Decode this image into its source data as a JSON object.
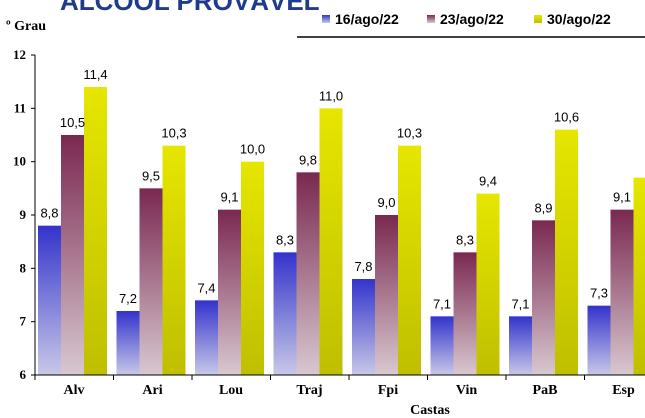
{
  "chart_data": {
    "type": "bar",
    "title": "ÁLCOOL PROVÁVEL",
    "ylabel": "º Grau",
    "xlabel": "Castas",
    "ylim": [
      6,
      12
    ],
    "yticks": [
      6,
      7,
      8,
      9,
      10,
      11,
      12
    ],
    "grid": false,
    "legend_position": "top-right",
    "categories": [
      "Alv",
      "Ari",
      "Lou",
      "Traj",
      "Fpi",
      "Vin",
      "PaB",
      "Esp"
    ],
    "series": [
      {
        "name": "16/ago/22",
        "values": [
          8.8,
          7.2,
          7.4,
          8.3,
          7.8,
          7.1,
          7.1,
          7.3
        ],
        "labels": [
          "8,8",
          "7,2",
          "7,4",
          "8,3",
          "7,8",
          "7,1",
          "7,1",
          "7,3"
        ],
        "color_top": "#3333cc",
        "color_bottom": "#c8c8e8"
      },
      {
        "name": "23/ago/22",
        "values": [
          10.5,
          9.5,
          9.1,
          9.8,
          9.0,
          8.3,
          8.9,
          9.1
        ],
        "labels": [
          "10,5",
          "9,5",
          "9,1",
          "9,8",
          "9,0",
          "8,3",
          "8,9",
          "9,1"
        ],
        "color_top": "#7a2850",
        "color_bottom": "#d8c8d0"
      },
      {
        "name": "30/ago/22",
        "values": [
          11.4,
          10.3,
          10.0,
          11.0,
          10.3,
          9.4,
          10.6,
          9.7
        ],
        "labels": [
          "11,4",
          "10,3",
          "10,0",
          "11,0",
          "10,3",
          "9,4",
          "10,6",
          ""
        ],
        "color_top": "#e6e600",
        "color_bottom": "#bfbf00"
      }
    ]
  }
}
